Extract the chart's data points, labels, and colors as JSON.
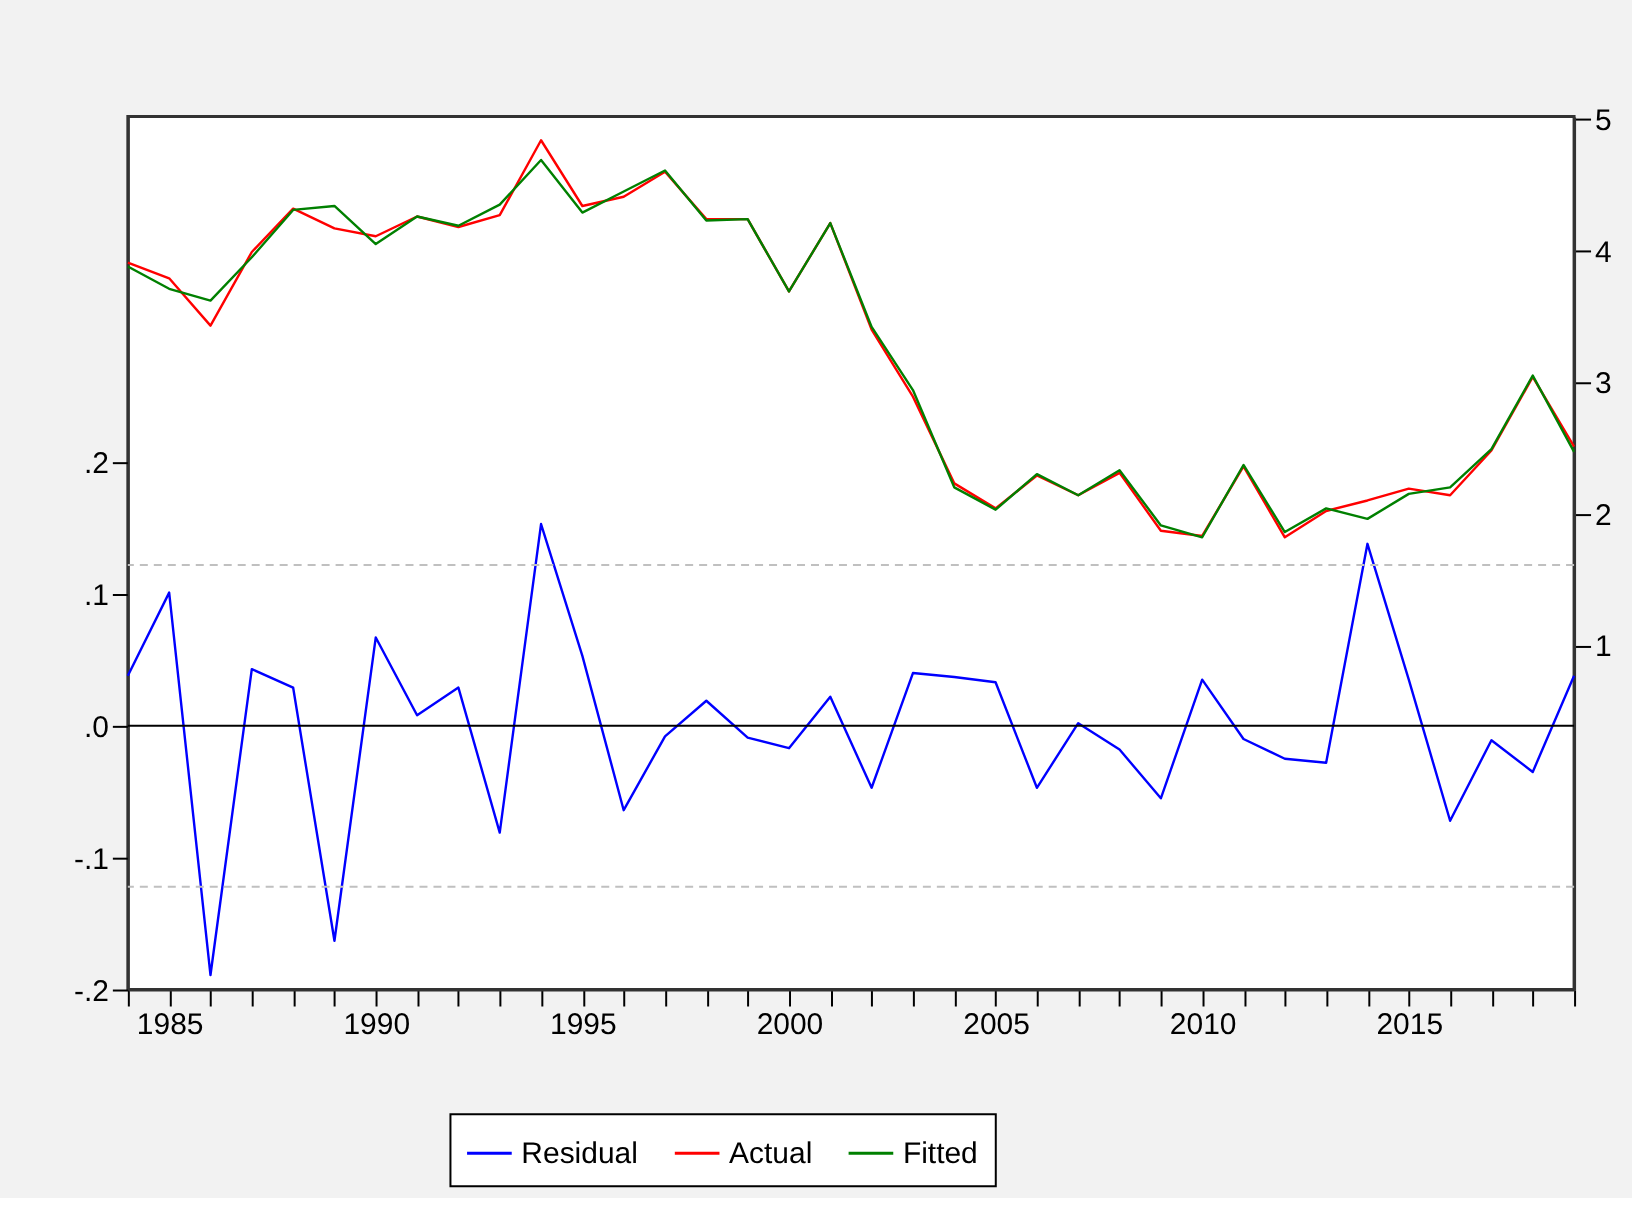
{
  "chart_data": {
    "type": "line",
    "x": [
      1984,
      1985,
      1986,
      1987,
      1988,
      1989,
      1990,
      1991,
      1992,
      1993,
      1994,
      1995,
      1996,
      1997,
      1998,
      1999,
      2000,
      2001,
      2002,
      2003,
      2004,
      2005,
      2006,
      2007,
      2008,
      2009,
      2010,
      2011,
      2012,
      2013,
      2014,
      2015,
      2016,
      2017,
      2018,
      2019
    ],
    "series": [
      {
        "name": "Residual",
        "color": "#0000ff",
        "axis": "y",
        "values": [
          0.038,
          0.101,
          -0.189,
          0.043,
          0.029,
          -0.163,
          0.067,
          0.008,
          0.029,
          -0.081,
          0.153,
          0.053,
          -0.064,
          -0.008,
          0.019,
          -0.009,
          -0.017,
          0.022,
          -0.047,
          0.04,
          0.037,
          0.033,
          -0.047,
          0.002,
          -0.018,
          -0.055,
          0.035,
          -0.01,
          -0.025,
          -0.028,
          0.138,
          0.035,
          -0.072,
          -0.011,
          -0.035,
          0.038
        ]
      },
      {
        "name": "Actual",
        "color": "#ff0000",
        "axis": "y2",
        "values": [
          3.91,
          3.79,
          3.43,
          3.99,
          4.32,
          4.17,
          4.11,
          4.26,
          4.18,
          4.27,
          4.84,
          4.34,
          4.41,
          4.6,
          4.24,
          4.24,
          3.69,
          4.21,
          3.4,
          2.89,
          2.23,
          2.04,
          2.29,
          2.14,
          2.31,
          1.87,
          1.83,
          2.36,
          1.82,
          2.02,
          2.1,
          2.19,
          2.14,
          2.48,
          3.04,
          2.51
        ]
      },
      {
        "name": "Fitted",
        "color": "#008000",
        "axis": "y2",
        "values": [
          3.88,
          3.71,
          3.62,
          3.95,
          4.31,
          4.34,
          4.05,
          4.26,
          4.19,
          4.35,
          4.69,
          4.29,
          4.45,
          4.61,
          4.23,
          4.24,
          3.69,
          4.21,
          3.42,
          2.94,
          2.2,
          2.03,
          2.3,
          2.14,
          2.33,
          1.91,
          1.82,
          2.37,
          1.86,
          2.04,
          1.96,
          2.15,
          2.2,
          2.49,
          3.05,
          2.47
        ]
      }
    ],
    "xlim": [
      1984,
      2019
    ],
    "xticks": [
      {
        "value": 1984,
        "label": null
      },
      1985,
      {
        "value": 1986,
        "label": null
      },
      {
        "value": 1987,
        "label": null
      },
      {
        "value": 1988,
        "label": null
      },
      {
        "value": 1989,
        "label": null
      },
      1990,
      {
        "value": 1991,
        "label": null
      },
      {
        "value": 1992,
        "label": null
      },
      {
        "value": 1993,
        "label": null
      },
      {
        "value": 1994,
        "label": null
      },
      1995,
      {
        "value": 1996,
        "label": null
      },
      {
        "value": 1997,
        "label": null
      },
      {
        "value": 1998,
        "label": null
      },
      {
        "value": 1999,
        "label": null
      },
      2000,
      {
        "value": 2001,
        "label": null
      },
      {
        "value": 2002,
        "label": null
      },
      {
        "value": 2003,
        "label": null
      },
      {
        "value": 2004,
        "label": null
      },
      2005,
      {
        "value": 2006,
        "label": null
      },
      {
        "value": 2007,
        "label": null
      },
      {
        "value": 2008,
        "label": null
      },
      {
        "value": 2009,
        "label": null
      },
      2010,
      {
        "value": 2011,
        "label": null
      },
      {
        "value": 2012,
        "label": null
      },
      {
        "value": 2013,
        "label": null
      },
      {
        "value": 2014,
        "label": null
      },
      2015,
      {
        "value": 2016,
        "label": null
      },
      {
        "value": 2017,
        "label": null
      },
      {
        "value": 2018,
        "label": null
      },
      {
        "value": 2019,
        "label": null
      }
    ],
    "ylim": [
      -0.2,
      0.462
    ],
    "yticks": [
      {
        "value": -0.2,
        "label": "-.2"
      },
      {
        "value": -0.1,
        "label": "-.1"
      },
      {
        "value": 0,
        "label": ".0"
      },
      {
        "value": 0.1,
        "label": ".1"
      },
      {
        "value": 0.2,
        "label": ".2"
      }
    ],
    "y2lim": [
      -1.62,
      5.02
    ],
    "y2ticks": [
      1,
      2,
      3,
      4,
      5
    ],
    "ref_lines": [
      {
        "axis": "y",
        "value": 0,
        "color": "#000000",
        "line_style": "solid"
      },
      {
        "axis": "y",
        "value": 0.122,
        "color": "#c0c0c0",
        "line_style": "dashed"
      },
      {
        "axis": "y",
        "value": -0.122,
        "color": "#c0c0c0",
        "line_style": "dashed"
      }
    ],
    "legend": "bottom",
    "grid": false,
    "line_style": "solid"
  }
}
